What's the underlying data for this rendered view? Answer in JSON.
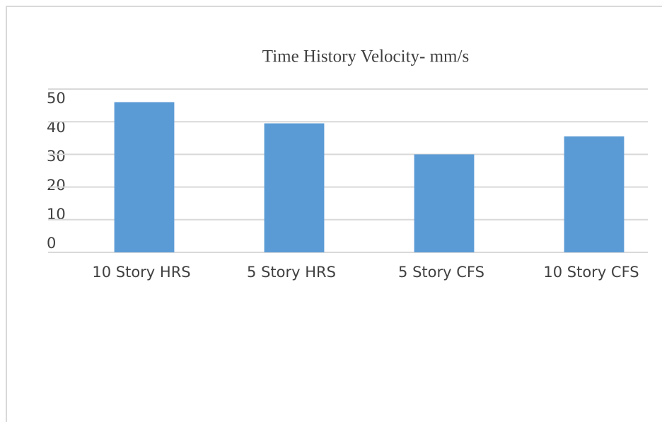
{
  "chart_data": {
    "type": "bar",
    "title": "Time History Velocity- mm/s",
    "categories": [
      "10 Story HRS",
      "5 Story HRS",
      "5 Story CFS",
      "10 Story CFS"
    ],
    "values": [
      46,
      39.5,
      30,
      35.5
    ],
    "color": "#5b9bd5",
    "ylim": [
      0,
      50
    ],
    "yticks": [
      0,
      10,
      20,
      30,
      40,
      50
    ],
    "grid": true
  }
}
